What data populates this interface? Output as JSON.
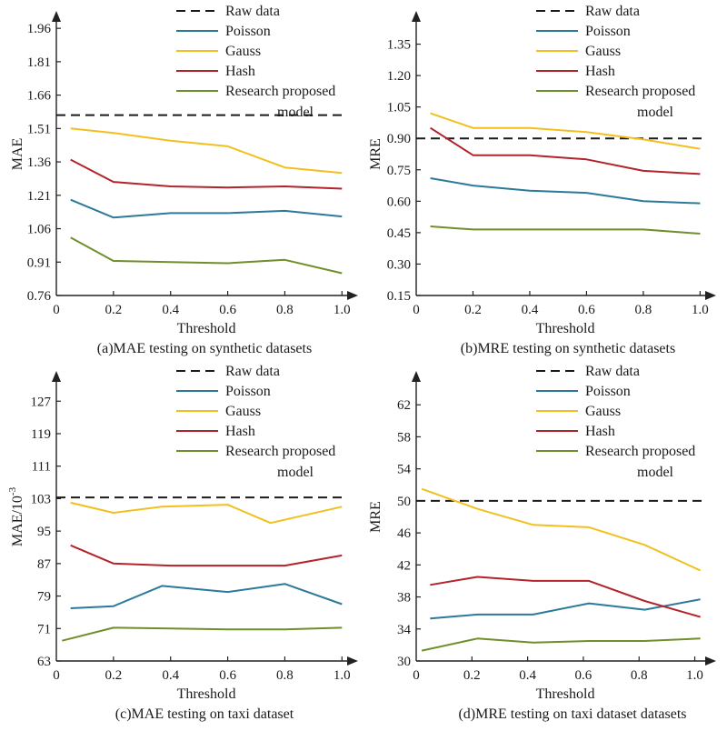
{
  "colors": {
    "raw": "#1a1a1a",
    "poisson": "#2c7a9a",
    "gauss": "#f2c01e",
    "hash": "#b3232a",
    "model": "#6f8f2c"
  },
  "chart_data": [
    {
      "type": "line",
      "caption": "(a)MAE testing on synthetic datasets",
      "xlabel": "Threshold",
      "ylabel": "MAE",
      "xlim": [
        0,
        1.05
      ],
      "ylim": [
        0.76,
        2.03
      ],
      "x_ticks": [
        "0",
        "0.2",
        "0.4",
        "0.6",
        "0.8",
        "1.0"
      ],
      "y_ticks": [
        "0.76",
        "0.91",
        "1.06",
        "1.21",
        "1.36",
        "1.51",
        "1.66",
        "1.81",
        "1.96"
      ],
      "legend": [
        "Raw data",
        "Poisson",
        "Gauss",
        "Hash",
        "Research proposed",
        "model"
      ],
      "raw_value": 1.57,
      "series": [
        {
          "name": "Poisson",
          "x": [
            0.05,
            0.2,
            0.4,
            0.6,
            0.8,
            1.0
          ],
          "y": [
            1.19,
            1.11,
            1.13,
            1.13,
            1.14,
            1.115
          ]
        },
        {
          "name": "Gauss",
          "x": [
            0.05,
            0.2,
            0.4,
            0.6,
            0.8,
            1.0
          ],
          "y": [
            1.51,
            1.49,
            1.455,
            1.43,
            1.335,
            1.31
          ]
        },
        {
          "name": "Hash",
          "x": [
            0.05,
            0.2,
            0.4,
            0.6,
            0.8,
            1.0
          ],
          "y": [
            1.37,
            1.27,
            1.25,
            1.245,
            1.25,
            1.24
          ]
        },
        {
          "name": "Research proposed model",
          "x": [
            0.05,
            0.2,
            0.4,
            0.6,
            0.8,
            1.0
          ],
          "y": [
            1.02,
            0.915,
            0.91,
            0.905,
            0.92,
            0.86
          ]
        }
      ]
    },
    {
      "type": "line",
      "caption": "(b)MRE testing on synthetic datasets",
      "xlabel": "Threshold",
      "ylabel": "MRE",
      "xlim": [
        0,
        1.05
      ],
      "ylim": [
        0.15,
        1.5
      ],
      "x_ticks": [
        "0",
        "0.2",
        "0.4",
        "0.6",
        "0.8",
        "1.0"
      ],
      "y_ticks": [
        "0.15",
        "0.30",
        "0.45",
        "0.60",
        "0.75",
        "0.90",
        "1.05",
        "1.20",
        "1.35"
      ],
      "legend": [
        "Raw data",
        "Poisson",
        "Gauss",
        "Hash",
        "Research proposed",
        "model"
      ],
      "raw_value": 0.9,
      "series": [
        {
          "name": "Poisson",
          "x": [
            0.05,
            0.2,
            0.4,
            0.6,
            0.8,
            1.0
          ],
          "y": [
            0.71,
            0.675,
            0.65,
            0.64,
            0.6,
            0.59
          ]
        },
        {
          "name": "Gauss",
          "x": [
            0.05,
            0.2,
            0.4,
            0.6,
            0.8,
            1.0
          ],
          "y": [
            1.02,
            0.95,
            0.95,
            0.93,
            0.895,
            0.85
          ]
        },
        {
          "name": "Hash",
          "x": [
            0.05,
            0.2,
            0.4,
            0.6,
            0.8,
            1.0
          ],
          "y": [
            0.95,
            0.82,
            0.82,
            0.8,
            0.745,
            0.73
          ]
        },
        {
          "name": "Research proposed model",
          "x": [
            0.05,
            0.2,
            0.4,
            0.6,
            0.8,
            1.0
          ],
          "y": [
            0.48,
            0.465,
            0.465,
            0.465,
            0.465,
            0.445
          ]
        }
      ]
    },
    {
      "type": "line",
      "caption": "(c)MAE testing on taxi dataset",
      "xlabel": "Threshold",
      "ylabel": "MAE/10",
      "ylabel_sup": "-3",
      "xlim": [
        0,
        1.05
      ],
      "ylim": [
        63,
        134
      ],
      "x_ticks": [
        "0",
        "0.2",
        "0.4",
        "0.6",
        "0.8",
        "1.0"
      ],
      "y_ticks": [
        "63",
        "71",
        "79",
        "87",
        "95",
        "103",
        "111",
        "119",
        "127"
      ],
      "legend": [
        "Raw data",
        "Poisson",
        "Gauss",
        "Hash",
        "Research proposed",
        "model"
      ],
      "raw_value": 103.3,
      "series": [
        {
          "name": "Poisson",
          "x": [
            0.05,
            0.2,
            0.37,
            0.6,
            0.8,
            1.0
          ],
          "y": [
            76,
            76.5,
            81.5,
            80,
            82,
            77
          ]
        },
        {
          "name": "Gauss",
          "x": [
            0.05,
            0.2,
            0.37,
            0.6,
            0.75,
            1.0
          ],
          "y": [
            102,
            99.5,
            101,
            101.5,
            97,
            101
          ]
        },
        {
          "name": "Hash",
          "x": [
            0.05,
            0.2,
            0.4,
            0.6,
            0.8,
            1.0
          ],
          "y": [
            91.5,
            87,
            86.5,
            86.5,
            86.5,
            89
          ]
        },
        {
          "name": "Research proposed model",
          "x": [
            0.02,
            0.2,
            0.4,
            0.6,
            0.8,
            1.0
          ],
          "y": [
            68,
            71.2,
            71,
            70.8,
            70.8,
            71.2
          ]
        }
      ]
    },
    {
      "type": "line",
      "caption": "(d)MRE testing on taxi dataset datasets",
      "xlabel": "Threshold",
      "ylabel": "MRE",
      "xlim": [
        0,
        1.07
      ],
      "ylim": [
        30,
        66
      ],
      "x_ticks": [
        "0",
        "0.2",
        "0.4",
        "0.6",
        "0.8",
        "1.0"
      ],
      "y_ticks": [
        "30",
        "34",
        "38",
        "42",
        "46",
        "50",
        "54",
        "58",
        "62"
      ],
      "legend": [
        "Raw data",
        "Poisson",
        "Gauss",
        "Hash",
        "Research proposed",
        "model"
      ],
      "raw_value": 50,
      "series": [
        {
          "name": "Poisson",
          "x": [
            0.05,
            0.22,
            0.42,
            0.62,
            0.82,
            1.02
          ],
          "y": [
            35.3,
            35.8,
            35.8,
            37.2,
            36.4,
            37.7
          ]
        },
        {
          "name": "Gauss",
          "x": [
            0.02,
            0.22,
            0.42,
            0.62,
            0.82,
            1.02
          ],
          "y": [
            51.5,
            49,
            47,
            46.7,
            44.5,
            41.3
          ]
        },
        {
          "name": "Hash",
          "x": [
            0.05,
            0.22,
            0.42,
            0.62,
            0.82,
            1.02
          ],
          "y": [
            39.5,
            40.5,
            40,
            40,
            37.5,
            35.5
          ]
        },
        {
          "name": "Research proposed model",
          "x": [
            0.02,
            0.22,
            0.42,
            0.62,
            0.82,
            1.02
          ],
          "y": [
            31.3,
            32.8,
            32.3,
            32.5,
            32.5,
            32.8
          ]
        }
      ]
    }
  ]
}
